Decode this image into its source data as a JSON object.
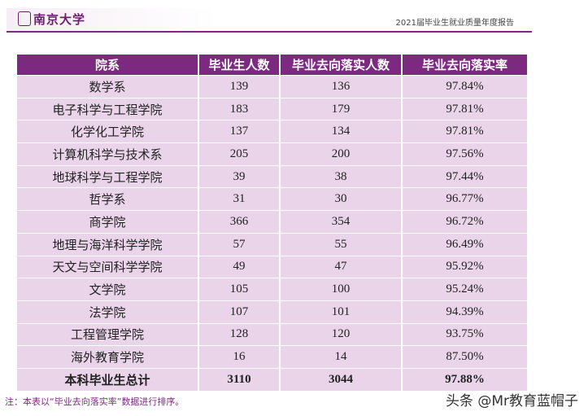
{
  "header": {
    "logo": "南京大学",
    "title": "2021届毕业生就业质量年度报告"
  },
  "table": {
    "columns": [
      "院系",
      "毕业生人数",
      "毕业去向落实人数",
      "毕业去向落实率"
    ],
    "rows": [
      [
        "数学系",
        "139",
        "136",
        "97.84%"
      ],
      [
        "电子科学与工程学院",
        "183",
        "179",
        "97.81%"
      ],
      [
        "化学化工学院",
        "137",
        "134",
        "97.81%"
      ],
      [
        "计算机科学与技术系",
        "205",
        "200",
        "97.56%"
      ],
      [
        "地球科学与工程学院",
        "39",
        "38",
        "97.44%"
      ],
      [
        "哲学系",
        "31",
        "30",
        "96.77%"
      ],
      [
        "商学院",
        "366",
        "354",
        "96.72%"
      ],
      [
        "地理与海洋科学学院",
        "57",
        "55",
        "96.49%"
      ],
      [
        "天文与空间科学学院",
        "49",
        "47",
        "95.92%"
      ],
      [
        "文学院",
        "105",
        "100",
        "95.24%"
      ],
      [
        "法学院",
        "107",
        "101",
        "94.39%"
      ],
      [
        "工程管理学院",
        "128",
        "120",
        "93.75%"
      ],
      [
        "海外教育学院",
        "16",
        "14",
        "87.50%"
      ]
    ],
    "total": [
      "本科毕业生总计",
      "3110",
      "3044",
      "97.88%"
    ]
  },
  "note": "注：本表以“毕业去向落实率”数据进行排序。",
  "watermark": "头条 @Mr教育蓝帽子"
}
